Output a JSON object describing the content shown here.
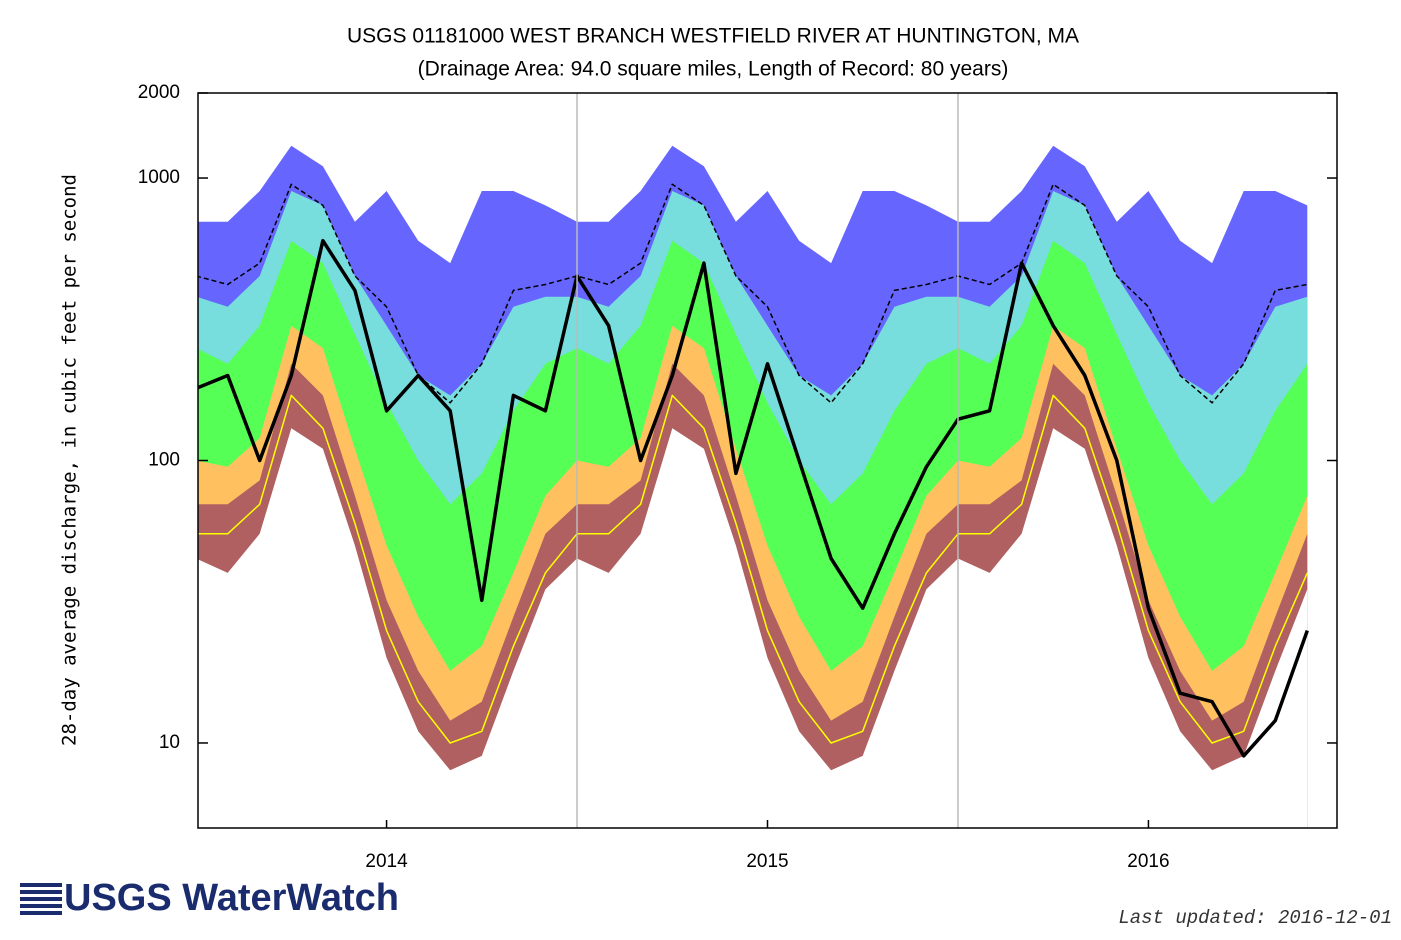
{
  "chart_data": {
    "type": "line",
    "title": "USGS 01181000 WEST BRANCH WESTFIELD RIVER AT HUNTINGTON, MA",
    "subtitle": "(Drainage Area: 94.0 square miles, Length of Record: 80 years)",
    "y_label": "28-day average discharge, in cubic feet per second",
    "logo": "USGS WaterWatch",
    "updated": "Last updated: 2016-12-01",
    "log_scale": true,
    "xlim": [
      2014.005,
      2016.995
    ],
    "ylim": [
      5,
      2000
    ],
    "yticks": [
      10,
      100,
      1000,
      2000
    ],
    "xticks": [
      {
        "value": 2014.5,
        "label": "2014"
      },
      {
        "value": 2015.5,
        "label": "2015"
      },
      {
        "value": 2016.5,
        "label": "2016"
      }
    ],
    "xgrid": [
      2015,
      2016
    ],
    "x": [
      2014,
      2014.083,
      2014.167,
      2014.25,
      2014.333,
      2014.417,
      2014.5,
      2014.583,
      2014.667,
      2014.75,
      2014.833,
      2014.917,
      2015,
      2015.083,
      2015.167,
      2015.25,
      2015.333,
      2015.417,
      2015.5,
      2015.583,
      2015.667,
      2015.75,
      2015.833,
      2015.917,
      2016,
      2016.083,
      2016.167,
      2016.25,
      2016.333,
      2016.417,
      2016.5,
      2016.583,
      2016.667,
      2016.75,
      2016.833,
      2016.917
    ],
    "series": [
      {
        "color": "#6666ff",
        "style": "area",
        "values": [
          700,
          700,
          900,
          1300,
          1100,
          700,
          900,
          600,
          500,
          900,
          900,
          800,
          700,
          700,
          900,
          1300,
          1100,
          700,
          900,
          600,
          500,
          900,
          900,
          800,
          700,
          700,
          900,
          1300,
          1100,
          700,
          900,
          600,
          500,
          900,
          900,
          800
        ]
      },
      {
        "color": "#77dddd",
        "style": "area",
        "values": [
          380,
          350,
          450,
          900,
          800,
          450,
          300,
          200,
          170,
          220,
          350,
          380,
          380,
          350,
          450,
          900,
          800,
          450,
          300,
          200,
          170,
          220,
          350,
          380,
          380,
          350,
          450,
          900,
          800,
          450,
          300,
          200,
          170,
          220,
          350,
          380
        ]
      },
      {
        "color": "#55ff55",
        "style": "area",
        "values": [
          250,
          220,
          300,
          600,
          500,
          280,
          160,
          100,
          70,
          90,
          150,
          220,
          250,
          220,
          300,
          600,
          500,
          280,
          160,
          100,
          70,
          90,
          150,
          220,
          250,
          220,
          300,
          600,
          500,
          280,
          160,
          100,
          70,
          90,
          150,
          220
        ]
      },
      {
        "color": "#ffc060",
        "style": "area",
        "values": [
          100,
          95,
          120,
          300,
          250,
          110,
          50,
          28,
          18,
          22,
          40,
          75,
          100,
          95,
          120,
          300,
          250,
          110,
          50,
          28,
          18,
          22,
          40,
          75,
          100,
          95,
          120,
          300,
          250,
          110,
          50,
          28,
          18,
          22,
          40,
          75
        ]
      },
      {
        "color": "#b06060",
        "style": "area",
        "values": [
          70,
          70,
          85,
          220,
          170,
          75,
          32,
          18,
          12,
          14,
          28,
          55,
          70,
          70,
          85,
          220,
          170,
          75,
          32,
          18,
          12,
          14,
          28,
          55,
          70,
          70,
          85,
          220,
          170,
          75,
          32,
          18,
          12,
          14,
          28,
          55
        ]
      },
      {
        "color": "#ffffff",
        "style": "area",
        "values": [
          45,
          40,
          55,
          130,
          110,
          50,
          20,
          11,
          8,
          9,
          18,
          35,
          45,
          40,
          55,
          130,
          110,
          50,
          20,
          11,
          8,
          9,
          18,
          35,
          45,
          40,
          55,
          130,
          110,
          50,
          20,
          11,
          8,
          9,
          18,
          35
        ]
      },
      {
        "color": "#ffff00",
        "style": "line",
        "values": [
          55,
          55,
          70,
          170,
          130,
          60,
          25,
          14,
          10,
          11,
          22,
          40,
          55,
          55,
          70,
          170,
          130,
          60,
          25,
          14,
          10,
          11,
          22,
          40,
          55,
          55,
          70,
          170,
          130,
          60,
          25,
          14,
          10,
          11,
          22,
          40
        ]
      },
      {
        "color": "#000000",
        "style": "dashed",
        "values": [
          450,
          420,
          500,
          950,
          800,
          450,
          350,
          200,
          160,
          220,
          400,
          420,
          450,
          420,
          500,
          950,
          800,
          450,
          350,
          200,
          160,
          220,
          400,
          420,
          450,
          420,
          500,
          950,
          800,
          450,
          350,
          200,
          160,
          220,
          400,
          420
        ]
      },
      {
        "color": "#000000",
        "style": "thick",
        "values": [
          180,
          200,
          100,
          200,
          600,
          400,
          150,
          200,
          150,
          32,
          170,
          150,
          450,
          300,
          100,
          200,
          500,
          90,
          220,
          100,
          45,
          30,
          55,
          95,
          140,
          150,
          500,
          300,
          200,
          100,
          30,
          15,
          14,
          9,
          12,
          25
        ]
      }
    ]
  }
}
